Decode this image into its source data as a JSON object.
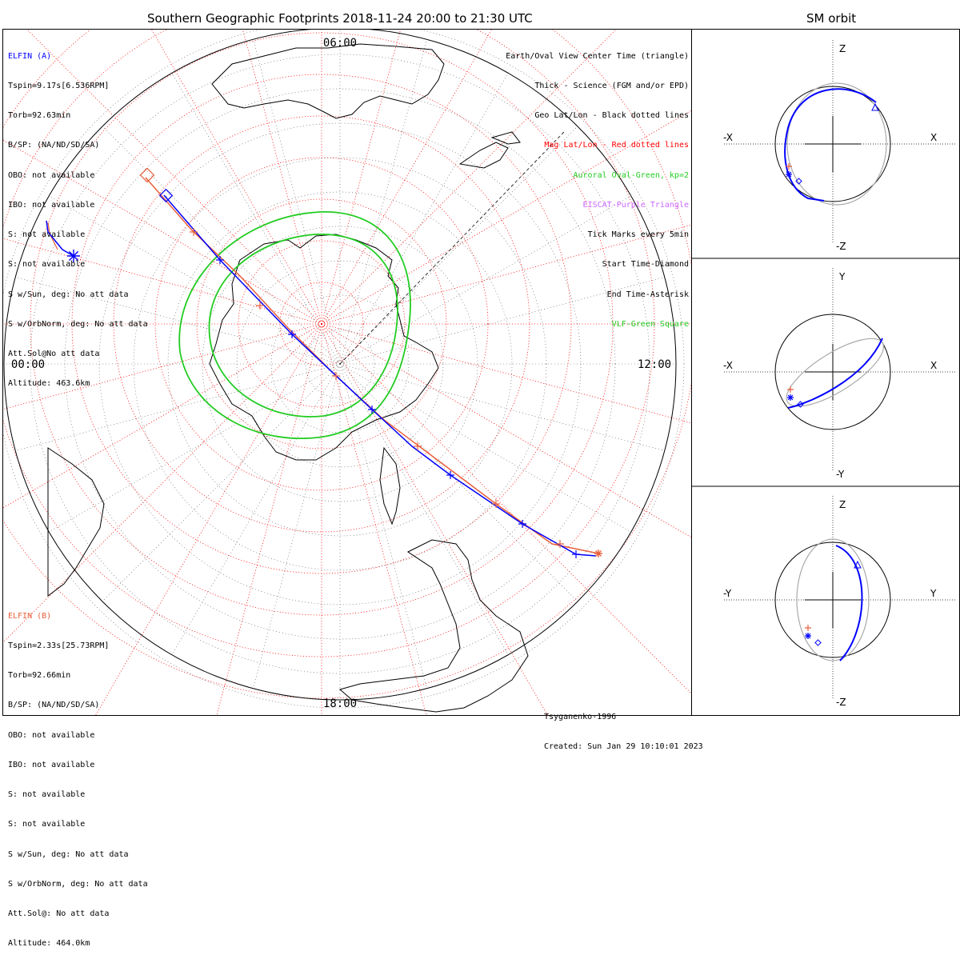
{
  "title": "Southern Geographic Footprints 2018-11-24 20:00 to 21:30 UTC",
  "sm_title": "SM orbit",
  "time_labels": {
    "top": "06:00",
    "left": "00:00",
    "right": "12:00",
    "bottom": "18:00"
  },
  "elfin_a": {
    "name": "ELFIN (A)",
    "color": "#0000ff",
    "lines": [
      "Tspin=9.17s[6.536RPM]",
      "Torb=92.63min",
      "B/SP: (NA/ND/SD/SA)",
      "OBO: not available",
      "IBO: not available",
      "S: not available",
      "S: not available",
      "S w/Sun, deg: No att data",
      "S w/OrbNorm, deg: No att data",
      "Att.Sol@No att data",
      "Altitude: 463.6km"
    ]
  },
  "elfin_b": {
    "name": "ELFIN (B)",
    "color": "#e8603c",
    "lines": [
      "Tspin=2.33s[25.73RPM]",
      "Torb=92.66min",
      "B/SP: (NA/ND/SD/SA)",
      "OBO: not available",
      "IBO: not available",
      "S: not available",
      "S: not available",
      "S w/Sun, deg: No att data",
      "S w/OrbNorm, deg: No att data",
      "Att.Sol@: No att data",
      "Altitude: 464.0km"
    ]
  },
  "legend": [
    {
      "text": "Earth/Oval View Center Time (triangle)",
      "color": "#000000"
    },
    {
      "text": "Thick - Science (FGM and/or EPD)",
      "color": "#000000"
    },
    {
      "text": "Geo Lat/Lon - Black dotted lines",
      "color": "#000000"
    },
    {
      "text": "Mag Lat/Lon - Red dotted lines",
      "color": "#ff0000"
    },
    {
      "text": "Auroral Oval-Green, kp=2",
      "color": "#22cc22"
    },
    {
      "text": "EISCAT-Purple Triangle",
      "color": "#cc66ff"
    },
    {
      "text": "Tick Marks every 5min",
      "color": "#000000"
    },
    {
      "text": "Start Time-Diamond",
      "color": "#000000"
    },
    {
      "text": "End Time-Asterisk",
      "color": "#000000"
    },
    {
      "text": "VLF-Green Square",
      "color": "#22cc22"
    }
  ],
  "credits": {
    "model": "Tsyganenko-1996",
    "created": "Created: Sun Jan 29 10:10:01 2023"
  },
  "sm_panels": [
    {
      "top": "Z",
      "bottom": "-Z",
      "left": "-X",
      "right": "X"
    },
    {
      "top": "Y",
      "bottom": "-Y",
      "left": "-X",
      "right": "X"
    },
    {
      "top": "Z",
      "bottom": "-Z",
      "left": "-Y",
      "right": "Y"
    }
  ],
  "colors": {
    "blue": "#0000ff",
    "orange": "#e8603c",
    "green": "#22cc22",
    "mag_grid": "#ff0000",
    "orbit_gray": "#aaaaaa"
  }
}
